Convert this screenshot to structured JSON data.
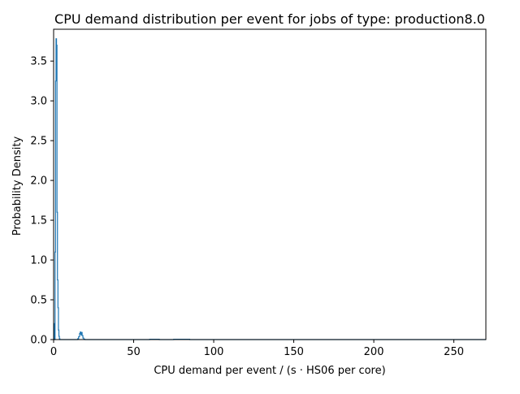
{
  "chart_data": {
    "type": "line",
    "title": "CPU demand distribution per event for jobs of type: production8.0",
    "xlabel": "CPU demand per event / (s · HS06 per core)",
    "ylabel": "Probability Density",
    "xlim": [
      0,
      270
    ],
    "ylim": [
      0,
      3.9
    ],
    "xticks": [
      0,
      50,
      100,
      150,
      200,
      250
    ],
    "yticks": [
      0.0,
      0.5,
      1.0,
      1.5,
      2.0,
      2.5,
      3.0,
      3.5
    ],
    "xtick_labels": [
      "0",
      "50",
      "100",
      "150",
      "200",
      "250"
    ],
    "ytick_labels": [
      "0.0",
      "0.5",
      "1.0",
      "1.5",
      "2.0",
      "2.5",
      "3.0",
      "3.5"
    ],
    "grid": false,
    "color": "#1f77b4",
    "series": [
      {
        "x": [
          0.0,
          0.3,
          0.3,
          0.6,
          0.6,
          0.9,
          0.9,
          1.2,
          1.2,
          1.5,
          1.5,
          1.8,
          1.8,
          2.1,
          2.1,
          2.4,
          2.4,
          2.7,
          2.7,
          3.0,
          3.0,
          3.3,
          3.3,
          3.6,
          3.6,
          3.9,
          3.9,
          15.0,
          15.0,
          15.6,
          15.6,
          16.2,
          16.2,
          16.6,
          16.6,
          17.0,
          17.0,
          17.4,
          17.4,
          17.8,
          17.8,
          18.3,
          18.3,
          18.8,
          18.8,
          19.4,
          19.4,
          60.0,
          60.0,
          66.0,
          66.0,
          75.0,
          75.0,
          85.0,
          85.0,
          270.0
        ],
        "y": [
          0.0,
          0.0,
          0.2,
          0.2,
          0.0,
          0.0,
          1.1,
          1.1,
          3.25,
          3.25,
          3.78,
          3.78,
          3.7,
          3.7,
          1.6,
          1.6,
          0.75,
          0.75,
          0.4,
          0.4,
          0.12,
          0.12,
          0.04,
          0.04,
          0.01,
          0.01,
          0.0,
          0.0,
          0.01,
          0.01,
          0.035,
          0.035,
          0.075,
          0.075,
          0.095,
          0.095,
          0.06,
          0.06,
          0.09,
          0.09,
          0.05,
          0.05,
          0.02,
          0.02,
          0.005,
          0.005,
          0.0,
          0.0,
          0.004,
          0.004,
          0.0,
          0.0,
          0.004,
          0.004,
          0.0,
          0.0
        ]
      }
    ]
  }
}
